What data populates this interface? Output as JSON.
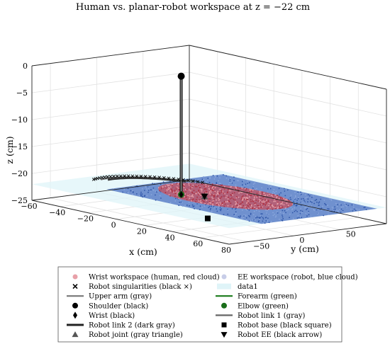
{
  "chart_data": {
    "type": "scatter",
    "title": "Human vs. planar-robot workspace at z = −22 cm",
    "xlabel": "x (cm)",
    "ylabel": "y (cm)",
    "zlabel": "z (cm)",
    "xlim": [
      -60,
      80
    ],
    "ylim": [
      -70,
      100
    ],
    "zlim": [
      -25,
      0
    ],
    "x_ticks": [
      "−60",
      "−40",
      "−20",
      "0",
      "20",
      "40",
      "60",
      "80"
    ],
    "y_ticks": [
      "−50",
      "0",
      "50",
      "100"
    ],
    "z_ticks": [
      "0",
      "−5",
      "−10",
      "−15",
      "−20",
      "−25"
    ],
    "grid": true,
    "legend_placement": "bottom",
    "colors": {
      "human_cloud": "#e8a0a8",
      "human_cloud_dark": "#b03040",
      "robot_cloud": "#5b7fc7",
      "robot_cloud_dark": "#2f56a8",
      "upper_arm": "#808080",
      "forearm": "#1a7a1a",
      "elbow": "#1a6e1a",
      "robot_link1": "#707070",
      "robot_link2": "#333333",
      "black": "#000000",
      "plane": "#dff4f8"
    },
    "human_workspace": {
      "center": [
        15,
        25
      ],
      "radius": 40,
      "z": -22
    },
    "robot_workspace": {
      "x_range": [
        -30,
        80
      ],
      "y_range": [
        -35,
        90
      ],
      "z": -22
    },
    "shoulder": [
      0,
      0,
      0
    ],
    "elbow": [
      0,
      0,
      -22
    ],
    "wrist": [
      0,
      0,
      -22
    ],
    "robot_base": [
      55,
      -55,
      -22
    ],
    "robot_joint": [
      10,
      10,
      -22
    ],
    "robot_ee": [
      10,
      10,
      -22
    ],
    "singularity_arc": {
      "center": [
        0,
        0
      ],
      "radius": 55,
      "angle_deg": [
        110,
        195
      ],
      "z": -22
    },
    "robot_link1_arc": {
      "center": [
        0,
        0
      ],
      "radius": 52,
      "angle_deg": [
        115,
        190
      ],
      "z": -22
    },
    "robot_link2_arc": {
      "center": [
        0,
        0
      ],
      "radius": 49,
      "angle_deg": [
        120,
        188
      ],
      "z": -22
    },
    "legend": [
      {
        "label": "Wrist workspace (human, red cloud)",
        "marker": "dot",
        "color": "#e8a0a8"
      },
      {
        "label": "EE workspace (robot, blue cloud)",
        "marker": "dot",
        "color": "#c8cde8"
      },
      {
        "label": "Robot singularities (black ×)",
        "marker": "cross",
        "color": "#000000"
      },
      {
        "label": "data1",
        "marker": "patch",
        "color": "#dff4f8"
      },
      {
        "label": "Upper arm (gray)",
        "marker": "line",
        "color": "#777777"
      },
      {
        "label": "Forearm (green)",
        "marker": "line",
        "color": "#1a7a1a"
      },
      {
        "label": "Shoulder (black)",
        "marker": "circle",
        "color": "#000000"
      },
      {
        "label": "Elbow (green)",
        "marker": "circle",
        "color": "#1a6e1a"
      },
      {
        "label": "Wrist (black)",
        "marker": "diamond",
        "color": "#000000"
      },
      {
        "label": "Robot link 1 (gray)",
        "marker": "line",
        "color": "#666666"
      },
      {
        "label": "Robot link 2 (dark gray)",
        "marker": "thickline",
        "color": "#222222"
      },
      {
        "label": "Robot base (black square)",
        "marker": "square",
        "color": "#000000"
      },
      {
        "label": "Robot joint (gray triangle)",
        "marker": "triangle",
        "color": "#555555"
      },
      {
        "label": "Robot EE (black arrow)",
        "marker": "arrowdown",
        "color": "#000000"
      }
    ]
  }
}
